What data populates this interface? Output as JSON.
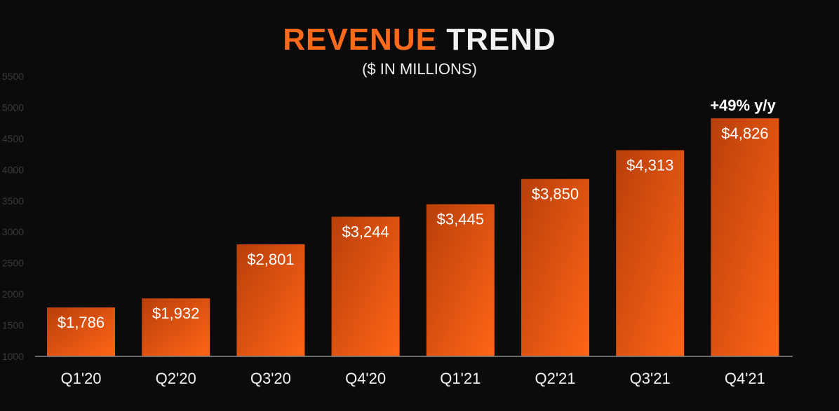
{
  "title": {
    "part1": "REVENUE",
    "part2": "TREND"
  },
  "subtitle": "($ IN MILLIONS)",
  "annotation": "+49% y/y",
  "colors": {
    "bar_top": "#b93f0a",
    "bar_bottom": "#ff6517",
    "title_accent": "#ff6a1a",
    "background": "#0b0b0b"
  },
  "chart_data": {
    "type": "bar",
    "categories": [
      "Q1'20",
      "Q2'20",
      "Q3'20",
      "Q4'20",
      "Q1'21",
      "Q2'21",
      "Q3'21",
      "Q4'21"
    ],
    "values": [
      1786,
      1932,
      2801,
      3244,
      3445,
      3850,
      4313,
      4826
    ],
    "data_labels": [
      "$1,786",
      "$1,932",
      "$2,801",
      "$3,244",
      "$3,445",
      "$3,850",
      "$4,313",
      "$4,826"
    ],
    "y_ticks": [
      "1000",
      "1500",
      "2000",
      "2500",
      "3000",
      "3500",
      "4000",
      "4500",
      "5000",
      "5500"
    ],
    "ylim": [
      1000,
      5500
    ],
    "title": "REVENUE TREND",
    "ylabel": "($ IN MILLIONS)",
    "grid": false
  }
}
